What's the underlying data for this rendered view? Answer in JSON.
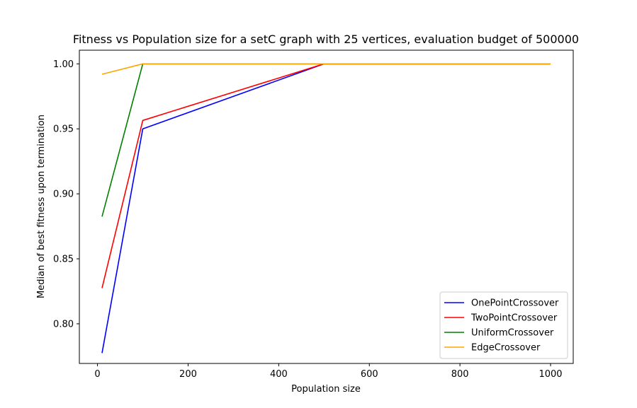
{
  "chart_data": {
    "type": "line",
    "title": "Fitness vs Population size for a setC graph with 25 vertices, evaluation budget of 500000",
    "xlabel": "Population size",
    "ylabel": "Median of best fitness upon termination",
    "xlim": [
      -40,
      1050
    ],
    "ylim": [
      0.7695,
      1.0105
    ],
    "xticks": [
      0,
      200,
      400,
      600,
      800,
      1000
    ],
    "xtick_labels": [
      "0",
      "200",
      "400",
      "600",
      "800",
      "1000"
    ],
    "yticks": [
      0.8,
      0.85,
      0.9,
      0.95,
      1.0
    ],
    "ytick_labels": [
      "0.80",
      "0.85",
      "0.90",
      "0.95",
      "1.00"
    ],
    "grid": false,
    "legend_position": "lower-right",
    "series": [
      {
        "name": "OnePointCrossover",
        "color": "#0000ff",
        "x": [
          10,
          100,
          500,
          1000
        ],
        "y": [
          0.7775,
          0.95,
          1.0,
          1.0
        ]
      },
      {
        "name": "TwoPointCrossover",
        "color": "#ff0000",
        "x": [
          10,
          100,
          500,
          1000
        ],
        "y": [
          0.8275,
          0.9565,
          1.0,
          1.0
        ]
      },
      {
        "name": "UniformCrossover",
        "color": "#008000",
        "x": [
          10,
          100,
          500,
          1000
        ],
        "y": [
          0.8825,
          1.0,
          1.0,
          1.0
        ]
      },
      {
        "name": "EdgeCrossover",
        "color": "#ffa500",
        "x": [
          10,
          100,
          500,
          1000
        ],
        "y": [
          0.992,
          1.0,
          1.0,
          1.0
        ]
      }
    ]
  }
}
